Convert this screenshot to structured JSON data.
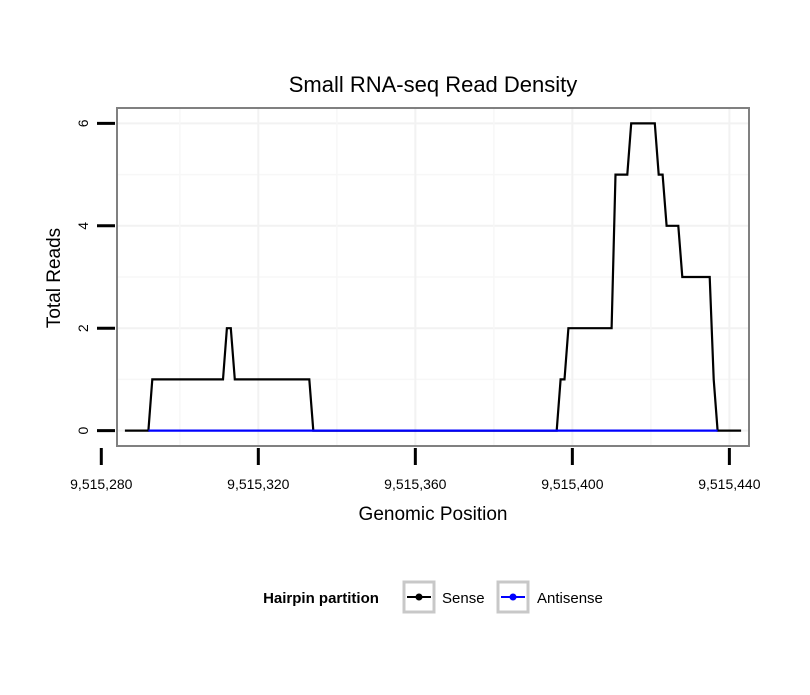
{
  "chart_data": {
    "type": "line",
    "title": "Small RNA-seq Read Density",
    "xlabel": "Genomic Position",
    "ylabel": "Total Reads",
    "xlim": [
      9515284,
      9515445
    ],
    "ylim": [
      -0.3,
      6.3
    ],
    "x_ticks": [
      9515280,
      9515320,
      9515360,
      9515400,
      9515440
    ],
    "x_tick_labels": [
      "9,515,280",
      "9,515,320",
      "9,515,360",
      "9,515,400",
      "9,515,440"
    ],
    "y_ticks": [
      0,
      2,
      4,
      6
    ],
    "y_tick_labels": [
      "0",
      "2",
      "4",
      "6"
    ],
    "grid": true,
    "legend": {
      "title": "Hairpin partition",
      "placement": "bottom",
      "entries": [
        "Sense",
        "Antisense"
      ]
    },
    "colors": {
      "Sense": "#000000",
      "Antisense": "#0000ff"
    },
    "series": [
      {
        "name": "Sense",
        "color": "#000000",
        "x": [
          9515286,
          9515292,
          9515293,
          9515311,
          9515312,
          9515313,
          9515314,
          9515333,
          9515334,
          9515396,
          9515397,
          9515398,
          9515399,
          9515410,
          9515411,
          9515414,
          9515415,
          9515421,
          9515422,
          9515423,
          9515424,
          9515427,
          9515428,
          9515435,
          9515436,
          9515437,
          9515443
        ],
        "y": [
          0,
          0,
          1,
          1,
          2,
          2,
          1,
          1,
          0,
          0,
          1,
          1,
          2,
          2,
          5,
          5,
          6,
          6,
          5,
          5,
          4,
          4,
          3,
          3,
          1,
          0,
          0
        ]
      },
      {
        "name": "Antisense",
        "color": "#0000ff",
        "x": [
          9515292,
          9515437
        ],
        "y": [
          0,
          0
        ]
      }
    ]
  }
}
